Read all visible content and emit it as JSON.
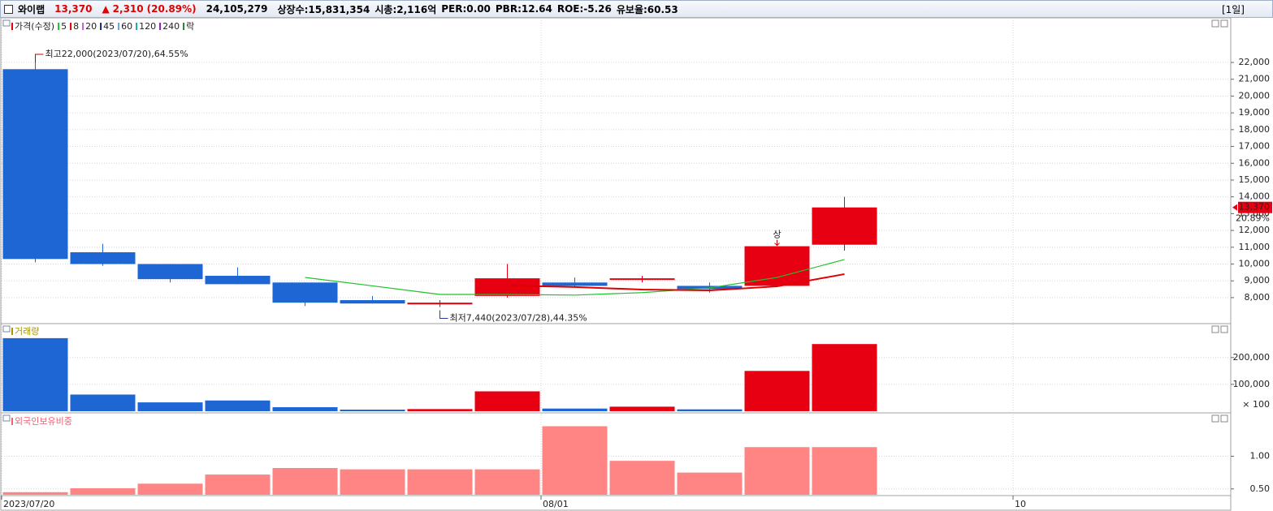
{
  "header": {
    "name": "와이랩",
    "price": "13,370",
    "arrow": "▲",
    "change": "2,310",
    "change_pct": "(20.89%)",
    "volume": "24,105,279",
    "listed": "상장수:15,831,354",
    "market_cap": "시총:2,116억",
    "per": "PER:0.00",
    "pbr": "PBR:12.64",
    "roe": "ROE:-5.26",
    "reserve": "유보율:60.53",
    "period": "[1일]"
  },
  "chart_data": [
    {
      "type": "candlestick",
      "legend_title": "가격(수정)",
      "categories": [
        "2023/07/20",
        null,
        null,
        null,
        null,
        null,
        null,
        null,
        "08/01",
        null,
        null,
        null,
        null,
        null,
        null,
        "10",
        null,
        null
      ],
      "open": [
        21600,
        10700,
        10000,
        9300,
        8900,
        7850,
        7600,
        8100,
        8900,
        9100,
        8700,
        8700,
        11150,
        null,
        null,
        null,
        null,
        null
      ],
      "high": [
        22000,
        11200,
        10000,
        9800,
        8900,
        8100,
        7850,
        10000,
        9200,
        9300,
        8900,
        11060,
        14000,
        null,
        null,
        null,
        null,
        null
      ],
      "low": [
        10100,
        9900,
        8900,
        8800,
        7500,
        7650,
        7440,
        8000,
        8600,
        8900,
        8300,
        8700,
        10800,
        null,
        null,
        null,
        null,
        null
      ],
      "close": [
        10300,
        10000,
        9100,
        8800,
        7700,
        7650,
        7700,
        9150,
        8700,
        9150,
        8510,
        11060,
        13370,
        null,
        null,
        null,
        null,
        null
      ],
      "up_color": "#e60012",
      "down_color": "#1e66d4",
      "moving_averages": [
        {
          "name": "5",
          "color": "#22c02a",
          "values": [
            null,
            null,
            null,
            null,
            9200,
            8700,
            8190,
            8190,
            8150,
            8300,
            8580,
            9200,
            10270,
            null,
            null,
            null,
            null,
            null
          ]
        },
        {
          "name": "8",
          "color": "#e00000",
          "values": [
            null,
            null,
            null,
            null,
            null,
            null,
            null,
            8720,
            8630,
            8480,
            8430,
            8670,
            9400,
            null,
            null,
            null,
            null,
            null
          ]
        },
        {
          "name": "20",
          "color": "#c060d0"
        },
        {
          "name": "45",
          "color": "#1a237e"
        },
        {
          "name": "60",
          "color": "#6a9fd8"
        },
        {
          "name": "120",
          "color": "#26a69a"
        },
        {
          "name": "240",
          "color": "#8e24aa"
        }
      ],
      "extra_legend": {
        "name": "락",
        "color": "#2e7d32"
      },
      "high_annotation": "최고22,000(2023/07/20),64.55%",
      "low_annotation": "최저7,440(2023/07/28),44.35%",
      "limit_marker": "상",
      "current_label": "13,370",
      "current_change": "20.89%",
      "ylim": [
        6500,
        24560
      ],
      "yticks": [
        {
          "value": 8000,
          "label": "8,000"
        },
        {
          "value": 9000,
          "label": "9,000"
        },
        {
          "value": 10000,
          "label": "10,000"
        },
        {
          "value": 11000,
          "label": "11,000"
        },
        {
          "value": 12000,
          "label": "12,000"
        },
        {
          "value": 13000,
          "label": "13,000"
        },
        {
          "value": 14000,
          "label": "14,000"
        },
        {
          "value": 15000,
          "label": "15,000"
        },
        {
          "value": 16000,
          "label": "16,000"
        },
        {
          "value": 17000,
          "label": "17,000"
        },
        {
          "value": 18000,
          "label": "18,000"
        },
        {
          "value": 19000,
          "label": "19,000"
        },
        {
          "value": 20000,
          "label": "20,000"
        },
        {
          "value": 21000,
          "label": "21,000"
        },
        {
          "value": 22000,
          "label": "22,000"
        }
      ],
      "grid": true
    },
    {
      "type": "bar",
      "title": "거래량",
      "values": [
        272000,
        62000,
        33000,
        40000,
        15000,
        6000,
        8000,
        74000,
        10000,
        17000,
        7000,
        150000,
        250000,
        null,
        null,
        null,
        null,
        null
      ],
      "ylim": [
        0,
        320000
      ],
      "yticks": [
        {
          "value": 100000,
          "label": "100,000"
        },
        {
          "value": 200000,
          "label": "200,000"
        }
      ],
      "unit_label": "× 100",
      "grid": true
    },
    {
      "type": "bar",
      "title": "외국인보유비중",
      "color": "#ff8585",
      "values": [
        0.45,
        0.51,
        0.58,
        0.72,
        0.82,
        0.8,
        0.8,
        0.8,
        1.46,
        0.93,
        0.75,
        1.14,
        1.14,
        null,
        null,
        null,
        null,
        null
      ],
      "ylim": [
        0.41,
        1.64
      ],
      "yticks": [
        {
          "value": 0.5,
          "label": "0.50"
        },
        {
          "value": 1,
          "label": "1.00"
        }
      ],
      "grid": true
    }
  ]
}
